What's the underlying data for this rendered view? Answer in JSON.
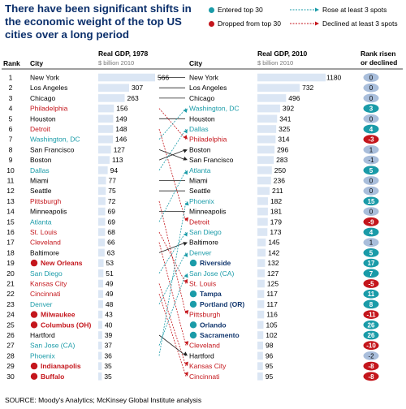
{
  "title": "There have been significant shifts in the economic weight of the top US cities over a long period",
  "legend": {
    "entered": "Entered top 30",
    "dropped": "Dropped from top 30",
    "rose": "Rose at least 3 spots",
    "declined": "Declined at least 3 spots"
  },
  "headers": {
    "rank": "Rank",
    "city": "City",
    "gdp1978": "Real GDP, 1978",
    "gdp2010": "Real GDP, 2010",
    "unit": "$ billion 2010",
    "change_line1": "Rank risen",
    "change_line2": "or declined"
  },
  "source": "SOURCE: Moody's Analytics; McKinsey Global Institute analysis",
  "colors": {
    "title": "#0b2f6b",
    "bar": "#dbe6f4",
    "teal": "#1a9ba8",
    "red": "#c4161c",
    "navy": "#12376e",
    "dark_red": "#c4161c",
    "neutral": "#a9bedb"
  },
  "chart_data": {
    "type": "table",
    "ranks": [
      1,
      2,
      3,
      4,
      5,
      6,
      7,
      8,
      9,
      10,
      11,
      12,
      13,
      14,
      15,
      16,
      17,
      18,
      19,
      20,
      21,
      22,
      23,
      24,
      25,
      26,
      27,
      28,
      29,
      30
    ],
    "cities_1978": [
      {
        "city": "New York",
        "gdp": 566,
        "status": "none"
      },
      {
        "city": "Los Angeles",
        "gdp": 307,
        "status": "none"
      },
      {
        "city": "Chicago",
        "gdp": 263,
        "status": "none"
      },
      {
        "city": "Philadelphia",
        "gdp": 156,
        "status": "declined"
      },
      {
        "city": "Houston",
        "gdp": 149,
        "status": "none"
      },
      {
        "city": "Detroit",
        "gdp": 148,
        "status": "declined"
      },
      {
        "city": "Washington, DC",
        "gdp": 146,
        "status": "rose"
      },
      {
        "city": "San Francisco",
        "gdp": 127,
        "status": "none"
      },
      {
        "city": "Boston",
        "gdp": 113,
        "status": "none"
      },
      {
        "city": "Dallas",
        "gdp": 94,
        "status": "rose"
      },
      {
        "city": "Miami",
        "gdp": 77,
        "status": "none"
      },
      {
        "city": "Seattle",
        "gdp": 75,
        "status": "none"
      },
      {
        "city": "Pittsburgh",
        "gdp": 72,
        "status": "declined"
      },
      {
        "city": "Minneapolis",
        "gdp": 69,
        "status": "none"
      },
      {
        "city": "Atlanta",
        "gdp": 69,
        "status": "rose"
      },
      {
        "city": "St. Louis",
        "gdp": 68,
        "status": "declined"
      },
      {
        "city": "Cleveland",
        "gdp": 66,
        "status": "declined"
      },
      {
        "city": "Baltimore",
        "gdp": 63,
        "status": "none"
      },
      {
        "city": "New Orleans",
        "gdp": 53,
        "status": "dropped"
      },
      {
        "city": "San Diego",
        "gdp": 51,
        "status": "rose"
      },
      {
        "city": "Kansas City",
        "gdp": 49,
        "status": "declined"
      },
      {
        "city": "Cincinnati",
        "gdp": 49,
        "status": "declined"
      },
      {
        "city": "Denver",
        "gdp": 48,
        "status": "rose"
      },
      {
        "city": "Milwaukee",
        "gdp": 43,
        "status": "dropped"
      },
      {
        "city": "Columbus (OH)",
        "gdp": 40,
        "status": "dropped"
      },
      {
        "city": "Hartford",
        "gdp": 39,
        "status": "none"
      },
      {
        "city": "San Jose (CA)",
        "gdp": 37,
        "status": "rose"
      },
      {
        "city": "Phoenix",
        "gdp": 36,
        "status": "rose"
      },
      {
        "city": "Indianapolis",
        "gdp": 35,
        "status": "dropped"
      },
      {
        "city": "Buffalo",
        "gdp": 35,
        "status": "dropped"
      }
    ],
    "cities_2010": [
      {
        "city": "New York",
        "gdp": 1180,
        "status": "none",
        "change": "0"
      },
      {
        "city": "Los Angeles",
        "gdp": 732,
        "status": "none",
        "change": "0"
      },
      {
        "city": "Chicago",
        "gdp": 496,
        "status": "none",
        "change": "0"
      },
      {
        "city": "Washington, DC",
        "gdp": 392,
        "status": "rose",
        "change": "3"
      },
      {
        "city": "Houston",
        "gdp": 341,
        "status": "none",
        "change": "0"
      },
      {
        "city": "Dallas",
        "gdp": 325,
        "status": "rose",
        "change": "4"
      },
      {
        "city": "Philadelphia",
        "gdp": 314,
        "status": "declined",
        "change": "-3"
      },
      {
        "city": "Boston",
        "gdp": 296,
        "status": "none",
        "change": "1"
      },
      {
        "city": "San Francisco",
        "gdp": 283,
        "status": "none",
        "change": "-1"
      },
      {
        "city": "Atlanta",
        "gdp": 250,
        "status": "rose",
        "change": "5"
      },
      {
        "city": "Miami",
        "gdp": 236,
        "status": "none",
        "change": "0"
      },
      {
        "city": "Seattle",
        "gdp": 211,
        "status": "none",
        "change": "0"
      },
      {
        "city": "Phoenix",
        "gdp": 182,
        "status": "rose",
        "change": "15"
      },
      {
        "city": "Minneapolis",
        "gdp": 181,
        "status": "none",
        "change": "0"
      },
      {
        "city": "Detroit",
        "gdp": 179,
        "status": "declined",
        "change": "-9"
      },
      {
        "city": "San Diego",
        "gdp": 173,
        "status": "rose",
        "change": "4"
      },
      {
        "city": "Baltimore",
        "gdp": 145,
        "status": "none",
        "change": "1"
      },
      {
        "city": "Denver",
        "gdp": 142,
        "status": "rose",
        "change": "5"
      },
      {
        "city": "Riverside",
        "gdp": 132,
        "status": "entered",
        "change": "17"
      },
      {
        "city": "San Jose (CA)",
        "gdp": 127,
        "status": "rose",
        "change": "7"
      },
      {
        "city": "St. Louis",
        "gdp": 125,
        "status": "declined",
        "change": "-5"
      },
      {
        "city": "Tampa",
        "gdp": 117,
        "status": "entered",
        "change": "11"
      },
      {
        "city": "Portland (OR)",
        "gdp": 117,
        "status": "entered",
        "change": "8"
      },
      {
        "city": "Pittsburgh",
        "gdp": 116,
        "status": "declined",
        "change": "-11"
      },
      {
        "city": "Orlando",
        "gdp": 105,
        "status": "entered",
        "change": "26"
      },
      {
        "city": "Sacramento",
        "gdp": 102,
        "status": "entered",
        "change": "26"
      },
      {
        "city": "Cleveland",
        "gdp": 98,
        "status": "declined",
        "change": "-10"
      },
      {
        "city": "Hartford",
        "gdp": 96,
        "status": "none",
        "change": "-2"
      },
      {
        "city": "Kansas City",
        "gdp": 95,
        "status": "declined",
        "change": "-8"
      },
      {
        "city": "Cincinnati",
        "gdp": 95,
        "status": "declined",
        "change": "-8"
      }
    ]
  }
}
